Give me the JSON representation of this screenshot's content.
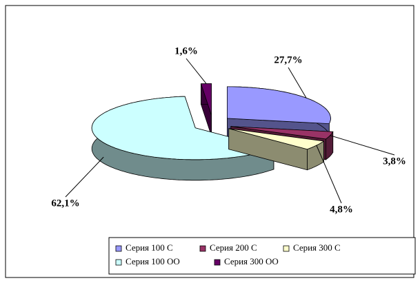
{
  "chart_data": {
    "type": "pie3d",
    "categories": [
      "Серия 100 С",
      "Серия 200 С",
      "Серия 300 С",
      "Серия 100 ОО",
      "Серия 300 ОО"
    ],
    "values": [
      27.7,
      3.8,
      4.8,
      62.1,
      1.6
    ],
    "value_labels": [
      "27,7%",
      "3,8%",
      "4,8%",
      "62,1%",
      "1,6%"
    ],
    "colors": [
      "#9999ff",
      "#993366",
      "#ffffcc",
      "#ccffff",
      "#660066"
    ],
    "legend": "bottom-right"
  }
}
